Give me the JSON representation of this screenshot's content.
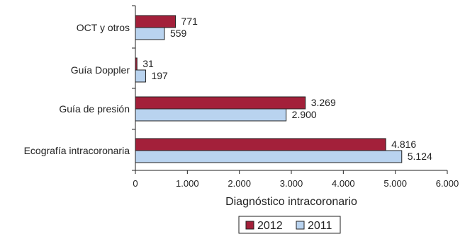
{
  "chart_data": {
    "type": "bar",
    "orientation": "horizontal",
    "categories": [
      "OCT y otros",
      "Guía Doppler",
      "Guía de presión",
      "Ecografía intracoronaria"
    ],
    "series": [
      {
        "name": "2012",
        "values": [
          771,
          31,
          3269,
          4816
        ],
        "labels": [
          "771",
          "31",
          "3.269",
          "4.816"
        ],
        "color": "#a3203a"
      },
      {
        "name": "2011",
        "values": [
          559,
          197,
          2900,
          5124
        ],
        "labels": [
          "559",
          "197",
          "2.900",
          "5.124"
        ],
        "color": "#b9d3ef"
      }
    ],
    "xlabel": "Diagnóstico intracoronario",
    "xlim": [
      0,
      6000
    ],
    "ticks": [
      0,
      1000,
      2000,
      3000,
      4000,
      5000,
      6000
    ],
    "tick_labels": [
      "0",
      "1.000",
      "2.000",
      "3.000",
      "4.000",
      "5.000",
      "6.000"
    ],
    "legend_position": "bottom",
    "grid": false
  }
}
